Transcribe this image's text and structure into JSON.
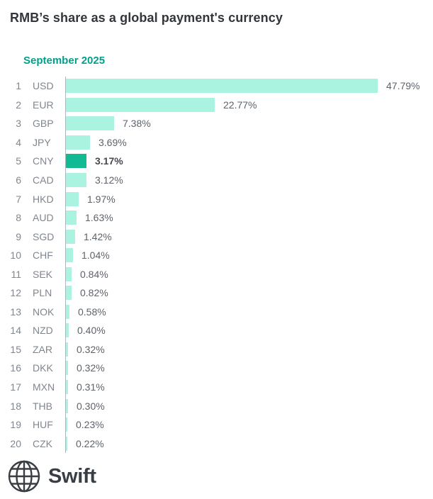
{
  "chart": {
    "title": "RMB’s share as a global payment's currency",
    "subtitle": "September 2025"
  },
  "chart_data": {
    "type": "bar",
    "orientation": "horizontal",
    "title": "RMB’s share as a global payment's currency",
    "subtitle": "September 2025",
    "xlabel": "",
    "ylabel": "",
    "xlim": [
      0,
      47.79
    ],
    "grid": false,
    "ranks": [
      1,
      2,
      3,
      4,
      5,
      6,
      7,
      8,
      9,
      10,
      11,
      12,
      13,
      14,
      15,
      16,
      17,
      18,
      19,
      20
    ],
    "categories": [
      "USD",
      "EUR",
      "GBP",
      "JPY",
      "CNY",
      "CAD",
      "HKD",
      "AUD",
      "SGD",
      "CHF",
      "SEK",
      "PLN",
      "NOK",
      "NZD",
      "ZAR",
      "DKK",
      "MXN",
      "THB",
      "HUF",
      "CZK"
    ],
    "values": [
      47.79,
      22.77,
      7.38,
      3.69,
      3.17,
      3.12,
      1.97,
      1.63,
      1.42,
      1.04,
      0.84,
      0.82,
      0.58,
      0.4,
      0.32,
      0.32,
      0.31,
      0.3,
      0.23,
      0.22
    ],
    "labels": [
      "47.79%",
      "22.77%",
      "7.38%",
      "3.69%",
      "3.17%",
      "3.12%",
      "1.97%",
      "1.63%",
      "1.42%",
      "1.04%",
      "0.84%",
      "0.82%",
      "0.58%",
      "0.40%",
      "0.32%",
      "0.32%",
      "0.31%",
      "0.30%",
      "0.23%",
      "0.22%"
    ],
    "highlight_category": "CNY",
    "colors": {
      "bar": "#aaf3e1",
      "highlight_bar": "#12ba94",
      "axis_line": "#a9b6bc",
      "accent_text": "#00a08c"
    }
  },
  "footer": {
    "logo_text": "Swift",
    "logo_icon": "globe-grid-icon"
  }
}
